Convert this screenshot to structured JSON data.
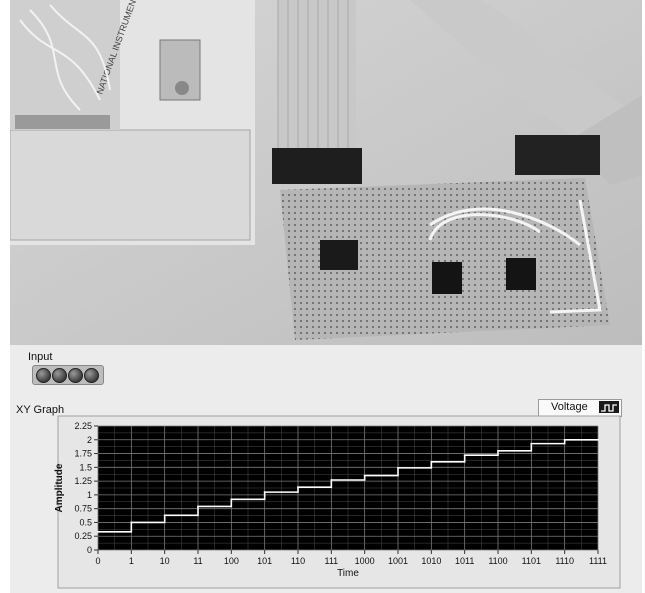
{
  "panel": {
    "input_label": "Input",
    "graph_label": "XY Graph",
    "legend_label": "Voltage"
  },
  "photo": {
    "description_icons": [
      "ribbon-cable-icon",
      "connector-icon",
      "perfboard-icon",
      "ic-chip-icon",
      "daq-device-icon"
    ]
  },
  "colors": {
    "plot_bg": "#000000",
    "grid": "#7a7a7a",
    "trace": "#ffffff",
    "panel_bg": "#ececec"
  },
  "chart_data": {
    "type": "line",
    "title": "XY Graph",
    "xlabel": "Time",
    "ylabel": "Amplitude",
    "x_tick_labels": [
      "0",
      "1",
      "10",
      "11",
      "100",
      "101",
      "110",
      "111",
      "1000",
      "1001",
      "1010",
      "1011",
      "1100",
      "1101",
      "1110",
      "1111"
    ],
    "y_tick_labels": [
      "0",
      "0.25",
      "0.5",
      "0.75",
      "1",
      "1.25",
      "1.5",
      "1.75",
      "2",
      "2.25"
    ],
    "xlim": [
      0,
      15
    ],
    "ylim": [
      0,
      2.25
    ],
    "grid": true,
    "legend_position": "top-right",
    "series": [
      {
        "name": "Voltage",
        "step": true,
        "x": [
          0,
          1,
          2,
          3,
          4,
          5,
          6,
          7,
          8,
          9,
          10,
          11,
          12,
          13,
          14,
          15
        ],
        "y": [
          0.33,
          0.5,
          0.63,
          0.79,
          0.92,
          1.05,
          1.14,
          1.27,
          1.35,
          1.49,
          1.6,
          1.72,
          1.8,
          1.93,
          2.0,
          2.0
        ]
      }
    ]
  }
}
